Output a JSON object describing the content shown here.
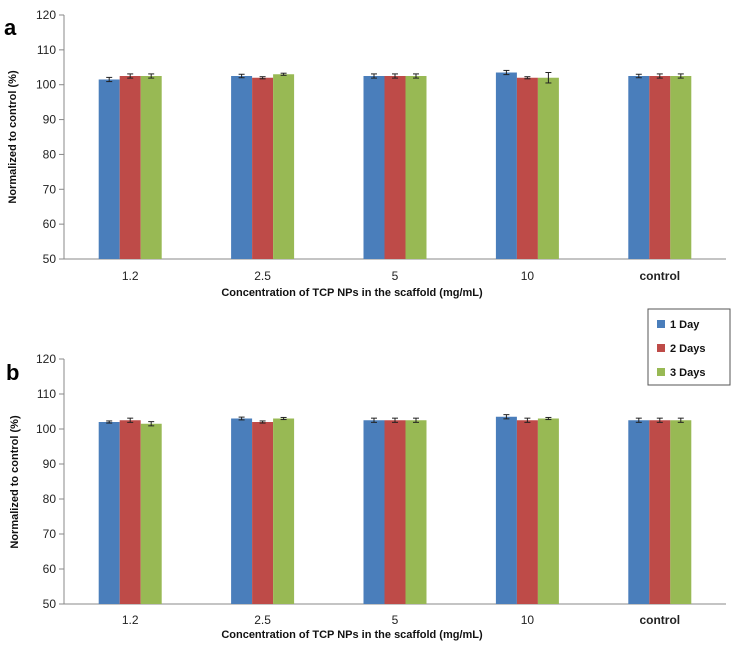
{
  "chart_data": [
    {
      "type": "bar",
      "panel_label": "a",
      "categories": [
        "1.2",
        "2.5",
        "5",
        "10",
        "control"
      ],
      "series": [
        {
          "name": "1 Day",
          "color": "#4a7ebb",
          "values": [
            101.5,
            102.5,
            102.5,
            103.5,
            102.5
          ],
          "errors": [
            0.6,
            0.5,
            0.6,
            0.6,
            0.5
          ]
        },
        {
          "name": "2 Days",
          "color": "#be4b48",
          "values": [
            102.5,
            102.0,
            102.5,
            102.0,
            102.5
          ],
          "errors": [
            0.6,
            0.3,
            0.6,
            0.3,
            0.6
          ]
        },
        {
          "name": "3 Days",
          "color": "#98b954",
          "values": [
            102.5,
            103.0,
            102.5,
            102.0,
            102.5
          ],
          "errors": [
            0.6,
            0.3,
            0.6,
            1.5,
            0.6
          ]
        }
      ],
      "xlabel": "Concentration of TCP NPs in the scaffold (mg/mL)",
      "ylabel": "Normalized to control (%)",
      "ylim": [
        50,
        120
      ],
      "yticks": [
        "50",
        "60",
        "70",
        "80",
        "90",
        "100",
        "110",
        "120"
      ],
      "grid": false,
      "legend": "right"
    },
    {
      "type": "bar",
      "panel_label": "b",
      "categories": [
        "1.2",
        "2.5",
        "5",
        "10",
        "control"
      ],
      "series": [
        {
          "name": "1 Day",
          "color": "#4a7ebb",
          "values": [
            102.0,
            103.0,
            102.5,
            103.5,
            102.5
          ],
          "errors": [
            0.3,
            0.4,
            0.6,
            0.6,
            0.6
          ]
        },
        {
          "name": "2 Days",
          "color": "#be4b48",
          "values": [
            102.5,
            102.0,
            102.5,
            102.5,
            102.5
          ],
          "errors": [
            0.6,
            0.3,
            0.6,
            0.6,
            0.6
          ]
        },
        {
          "name": "3 Days",
          "color": "#98b954",
          "values": [
            101.5,
            103.0,
            102.5,
            103.0,
            102.5
          ],
          "errors": [
            0.6,
            0.3,
            0.6,
            0.3,
            0.6
          ]
        }
      ],
      "xlabel": "Concentration of TCP NPs in the scaffold (mg/mL)",
      "ylabel": "Normalized to control (%)",
      "ylim": [
        50,
        120
      ],
      "yticks": [
        "50",
        "60",
        "70",
        "80",
        "90",
        "100",
        "110",
        "120"
      ],
      "grid": false,
      "legend": "top-right"
    }
  ],
  "legend": {
    "items": [
      {
        "label": "1 Day",
        "color": "#4a7ebb"
      },
      {
        "label": "2 Days",
        "color": "#be4b48"
      },
      {
        "label": "3 Days",
        "color": "#98b954"
      }
    ]
  }
}
